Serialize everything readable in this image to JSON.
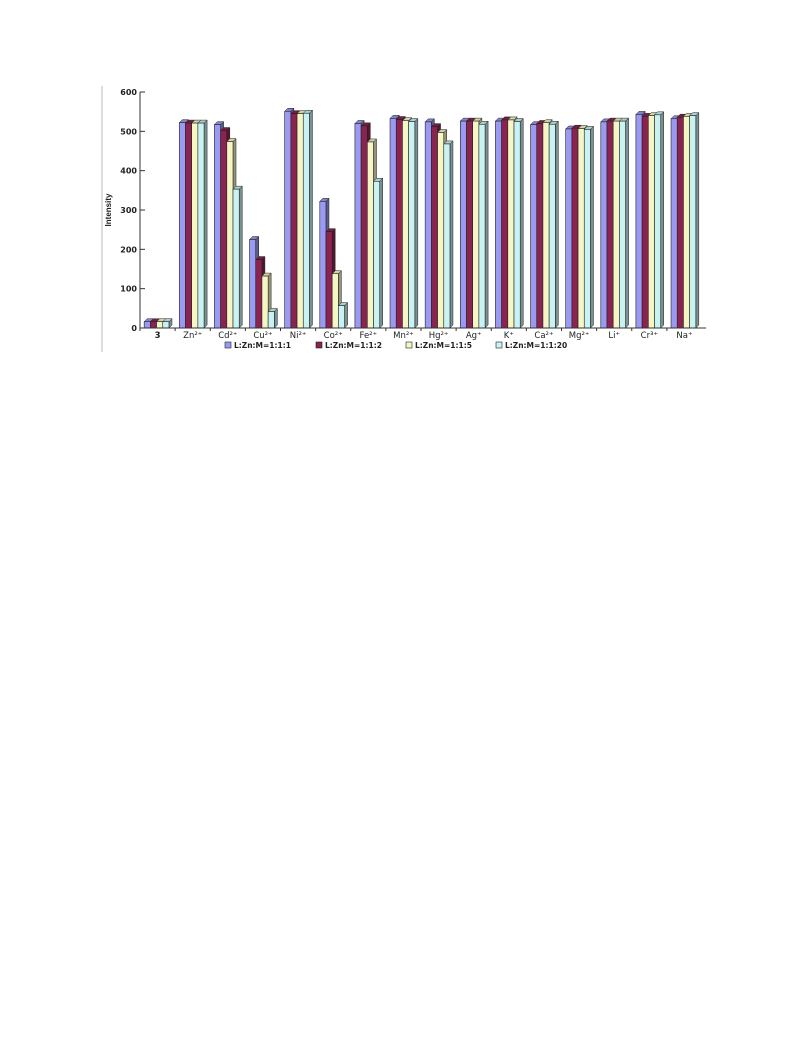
{
  "chart_data": {
    "type": "bar",
    "ylabel": "Intensity",
    "xlabel": "",
    "title": "",
    "ylim": [
      0,
      600
    ],
    "yticks": [
      0,
      100,
      200,
      300,
      400,
      500,
      600
    ],
    "grid": false,
    "legend_position": "bottom",
    "categories": [
      "3",
      "Zn²⁺",
      "Cd²⁺",
      "Cu²⁺",
      "Ni²⁺",
      "Co²⁺",
      "Fe²⁺",
      "Mn²⁺",
      "Hg²⁺",
      "Ag⁺",
      "K⁺",
      "Ca²⁺",
      "Mg²⁺",
      "Li⁺",
      "Cr³⁺",
      "Na⁺"
    ],
    "series": [
      {
        "name": "L:Zn:M=1:1:1",
        "color": "#9a9af2",
        "values": [
          16,
          522,
          517,
          225,
          551,
          322,
          520,
          533,
          524,
          526,
          526,
          517,
          506,
          524,
          543,
          532
        ]
      },
      {
        "name": "L:Zn:M=1:1:2",
        "color": "#8a2350",
        "values": [
          16,
          521,
          502,
          174,
          545,
          245,
          514,
          530,
          512,
          526,
          529,
          520,
          508,
          526,
          538,
          536
        ]
      },
      {
        "name": "L:Zn:M=1:1:5",
        "color": "#f6f6c4",
        "values": [
          16,
          521,
          474,
          132,
          545,
          138,
          473,
          527,
          497,
          526,
          529,
          522,
          507,
          526,
          540,
          538
        ]
      },
      {
        "name": "L:Zn:M=1:1:20",
        "color": "#c9f2f2",
        "values": [
          16,
          521,
          353,
          42,
          546,
          57,
          373,
          525,
          468,
          518,
          525,
          518,
          505,
          526,
          542,
          540
        ]
      }
    ]
  }
}
